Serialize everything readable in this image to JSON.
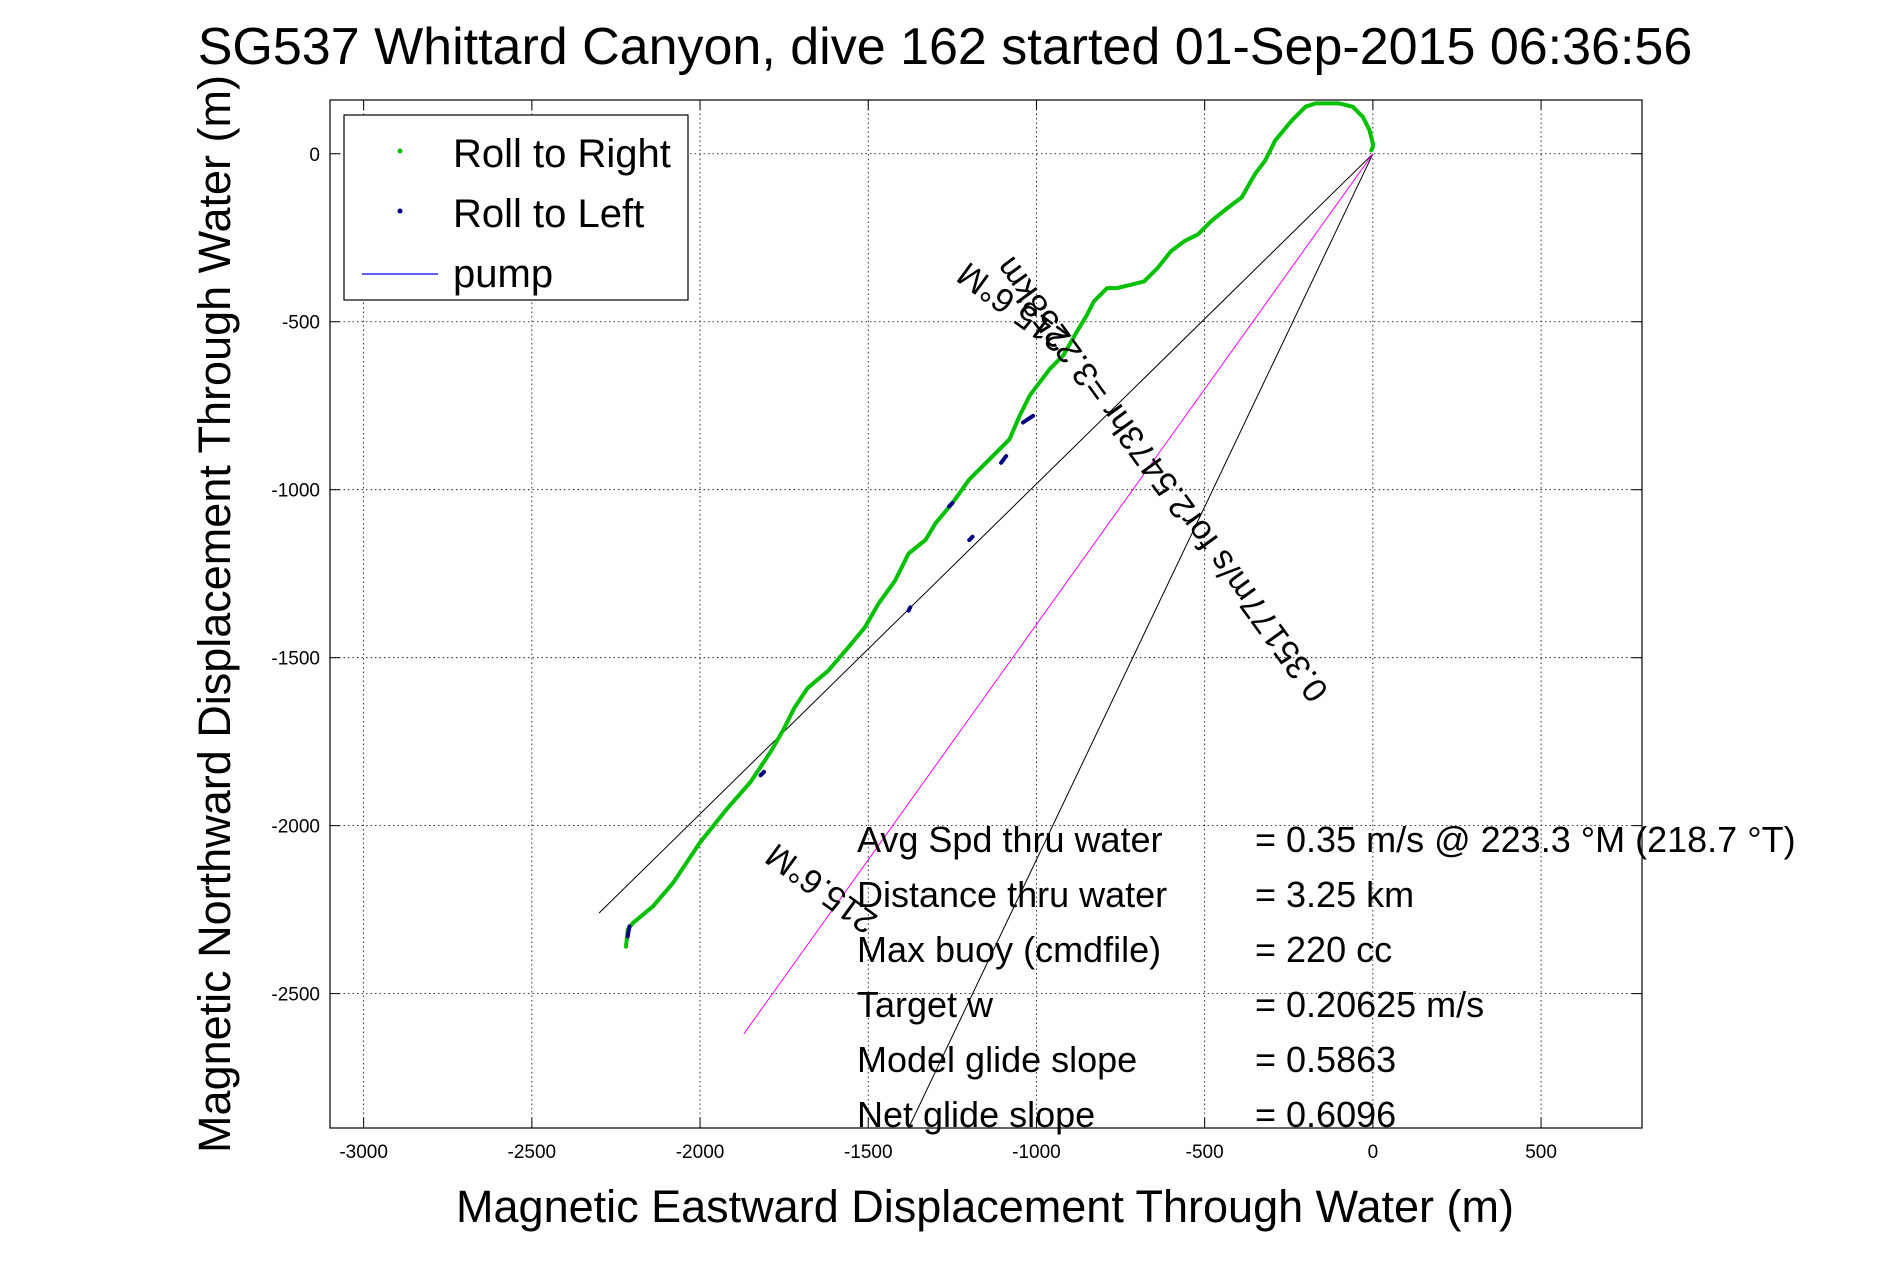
{
  "chart_data": {
    "type": "line",
    "title": "SG537 Whittard Canyon, dive 162 started 01-Sep-2015 06:36:56",
    "xlabel": "Magnetic Eastward Displacement Through Water (m)",
    "ylabel": "Magnetic Northward Displacement Through Water (m)",
    "xlim": [
      -3100,
      800
    ],
    "ylim": [
      -2900,
      160
    ],
    "xticks": [
      -3000,
      -2500,
      -2000,
      -1500,
      -1000,
      -500,
      0,
      500
    ],
    "yticks": [
      0,
      -500,
      -1000,
      -1500,
      -2000,
      -2500
    ],
    "xtick_labels": [
      "-3000",
      "-2500",
      "-2000",
      "-1500",
      "-1000",
      "-500",
      "0",
      "500"
    ],
    "ytick_labels": [
      "0",
      "-500",
      "-1000",
      "-1500",
      "-2000",
      "-2500"
    ],
    "grid": true,
    "legend": {
      "position": "top-left",
      "entries": [
        "Roll to Right",
        "Roll to Left",
        "pump"
      ]
    },
    "series": [
      {
        "name": "Roll to Right",
        "color": "#00c000",
        "x": [
          -2220,
          -2215,
          -2200,
          -2140,
          -2080,
          -2000,
          -1920,
          -1850,
          -1790,
          -1750,
          -1720,
          -1680,
          -1620,
          -1560,
          -1510,
          -1470,
          -1420,
          -1380,
          -1330,
          -1300,
          -1250,
          -1200,
          -1150,
          -1080,
          -1050,
          -1020,
          -990,
          -960,
          -920,
          -880,
          -850,
          -830,
          -810,
          -790,
          -760,
          -720,
          -680,
          -640,
          -600,
          -560,
          -520,
          -480,
          -430,
          -390,
          -350,
          -320,
          -290,
          -240,
          -200,
          -170,
          -140,
          -100,
          -60,
          -30,
          -10,
          0,
          0,
          -5
        ],
        "y": [
          -2360,
          -2310,
          -2290,
          -2240,
          -2170,
          -2050,
          -1950,
          -1870,
          -1780,
          -1710,
          -1650,
          -1590,
          -1540,
          -1470,
          -1410,
          -1340,
          -1270,
          -1190,
          -1150,
          -1100,
          -1040,
          -970,
          -920,
          -850,
          -780,
          -720,
          -680,
          -640,
          -600,
          -530,
          -480,
          -440,
          -420,
          -400,
          -400,
          -390,
          -380,
          -340,
          -290,
          -260,
          -240,
          -200,
          -160,
          -130,
          -60,
          -20,
          40,
          100,
          140,
          150,
          150,
          150,
          140,
          110,
          70,
          30,
          20,
          10
        ]
      },
      {
        "name": "Roll to Left",
        "color": "#000080",
        "segments": [
          {
            "x": [
              -2215,
              -2210
            ],
            "y": [
              -2330,
              -2300
            ]
          },
          {
            "x": [
              -1040,
              -1010
            ],
            "y": [
              -800,
              -780
            ]
          },
          {
            "x": [
              -1105,
              -1090
            ],
            "y": [
              -920,
              -900
            ]
          },
          {
            "x": [
              -1200,
              -1190
            ],
            "y": [
              -1150,
              -1140
            ]
          },
          {
            "x": [
              -1260,
              -1250
            ],
            "y": [
              -1050,
              -1040
            ]
          },
          {
            "x": [
              -1380,
              -1375
            ],
            "y": [
              -1360,
              -1350
            ]
          },
          {
            "x": [
              -1820,
              -1810
            ],
            "y": [
              -1850,
              -1840
            ]
          }
        ]
      },
      {
        "name": "pump",
        "color": "#0000ff",
        "x": [],
        "y": []
      }
    ],
    "guide_lines": [
      {
        "color": "#000000",
        "x": [
          0,
          -2300
        ],
        "y": [
          0,
          -2260
        ]
      },
      {
        "color": "#000000",
        "x": [
          0,
          -1380
        ],
        "y": [
          0,
          -2900
        ]
      },
      {
        "color": "#ff00ff",
        "x": [
          0,
          -1870
        ],
        "y": [
          0,
          -2620
        ]
      }
    ],
    "annotations": [
      {
        "text": "215.6°M",
        "x": -1050,
        "y": -430,
        "rotation": 216
      },
      {
        "text": "0.35177m/s for2.5473hr =3.2258km",
        "x": -600,
        "y": -950,
        "rotation": 234
      },
      {
        "text": "215.6°M",
        "x": -1620,
        "y": -2160,
        "rotation": 216
      }
    ],
    "stats": [
      {
        "label": "Avg Spd thru water",
        "value": "=  0.35 m/s @ 223.3 °M (218.7 °T)"
      },
      {
        "label": "Distance thru water",
        "value": "=  3.25 km"
      },
      {
        "label": "Max buoy (cmdfile)",
        "value": "= 220 cc"
      },
      {
        "label": "Target w",
        "value": "= 0.20625 m/s"
      },
      {
        "label": "Model glide slope",
        "value": "= 0.5863"
      },
      {
        "label": "Net glide slope",
        "value": "= 0.6096"
      }
    ]
  }
}
